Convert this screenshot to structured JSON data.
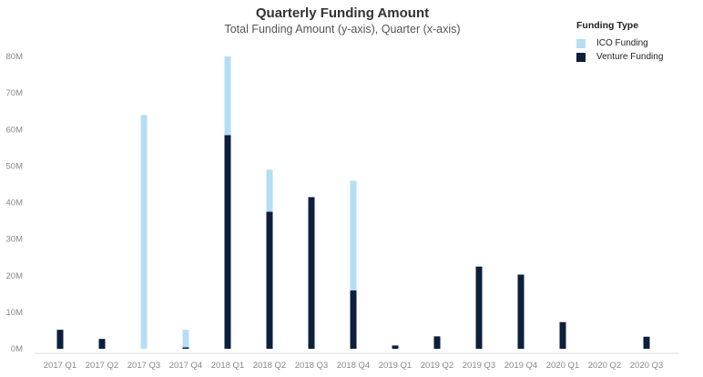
{
  "chart_data": {
    "type": "bar",
    "stacked": true,
    "title": "Quarterly Funding Amount",
    "subtitle": "Total Funding Amount (y-axis), Quarter (x-axis)",
    "categories": [
      "2017 Q1",
      "2017 Q2",
      "2017 Q3",
      "2017 Q4",
      "2018 Q1",
      "2018 Q2",
      "2018 Q3",
      "2018 Q4",
      "2019 Q1",
      "2019 Q2",
      "2019 Q3",
      "2019 Q4",
      "2020 Q1",
      "2020 Q2",
      "2020 Q3"
    ],
    "series": [
      {
        "name": "Venture Funding",
        "color": "#0d1f3d",
        "values": [
          5.2,
          2.7,
          0,
          0.4,
          58.5,
          37.5,
          41.5,
          16.0,
          0.9,
          3.4,
          22.5,
          20.3,
          7.3,
          0,
          3.3
        ]
      },
      {
        "name": "ICO Funding",
        "color": "#b6ddf4",
        "values": [
          0,
          0,
          64.0,
          4.8,
          21.5,
          11.5,
          0,
          30.0,
          0,
          0,
          0,
          0,
          0,
          0,
          0
        ]
      }
    ],
    "yticks": [
      "0M",
      "10M",
      "20M",
      "30M",
      "40M",
      "50M",
      "60M",
      "70M",
      "80M"
    ],
    "ylim": [
      0,
      80
    ],
    "legend": {
      "title": "Funding Type",
      "items": [
        "ICO Funding",
        "Venture Funding"
      ],
      "position": "top-right"
    },
    "grid": false
  }
}
